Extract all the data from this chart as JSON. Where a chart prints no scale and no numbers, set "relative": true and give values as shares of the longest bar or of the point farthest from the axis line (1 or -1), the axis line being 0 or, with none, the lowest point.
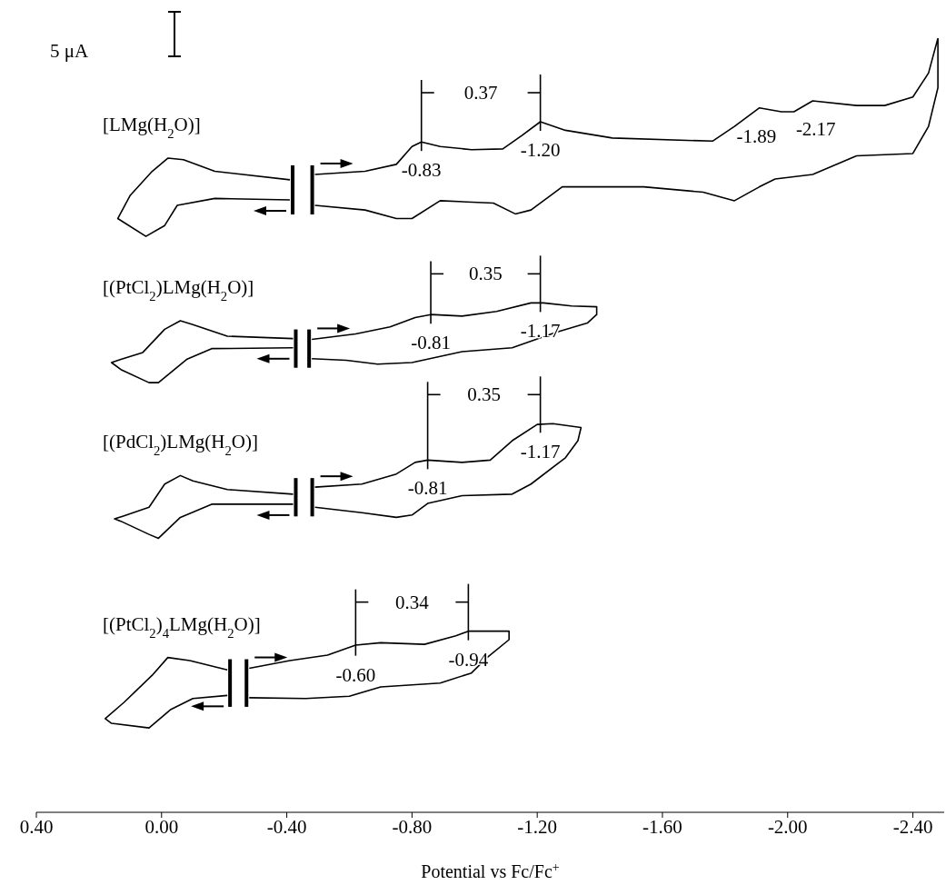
{
  "chart_data": {
    "type": "line",
    "xlabel": "Potential vs Fc/Fc$^{+}$",
    "relative": true,
    "xlim": [
      0.4,
      -2.5
    ],
    "xticks": [
      {
        "value": 0.4,
        "label": "0.40"
      },
      {
        "value": 0,
        "label": "0.00"
      },
      {
        "value": -0.4,
        "label": "-0.40"
      },
      {
        "value": -0.8,
        "label": "-0.80"
      },
      {
        "value": -1.2,
        "label": "-1.20"
      },
      {
        "value": -1.6,
        "label": "-1.60"
      },
      {
        "value": -2.0,
        "label": "-2.00"
      },
      {
        "value": -2.4,
        "label": "-2.40"
      }
    ],
    "series": [
      {
        "name": "[LMg(H$_{2}$O)]",
        "color": "#000000",
        "x": [
          -0.49,
          -0.65,
          -0.75,
          -0.8,
          -0.83,
          -0.89,
          -0.99,
          -1.09,
          -1.15,
          -1.21,
          -1.29,
          -1.44,
          -1.76,
          -1.83,
          -1.91,
          -1.98,
          -2.02,
          -2.08,
          -2.22,
          -2.31,
          -2.4,
          -2.45,
          -2.48,
          -2.48,
          -2.45,
          -2.4,
          -2.22,
          -2.08,
          -1.96,
          -1.91,
          -1.83,
          -1.73,
          -1.54,
          -1.28,
          -1.18,
          -1.13,
          -1.06,
          -0.89,
          -0.8,
          -0.75,
          -0.65,
          -0.49,
          null,
          -0.41,
          -0.17,
          -0.05,
          -0.01,
          0.05,
          0.14,
          0.1,
          0.03,
          -0.02,
          -0.07,
          -0.17,
          -0.41
        ],
        "values": [
          0.824,
          0.828,
          0.837,
          0.86,
          0.866,
          0.86,
          0.856,
          0.857,
          0.874,
          0.892,
          0.881,
          0.871,
          0.867,
          0.886,
          0.91,
          0.905,
          0.905,
          0.919,
          0.913,
          0.913,
          0.924,
          0.955,
          1.0,
          0.936,
          0.886,
          0.851,
          0.848,
          0.824,
          0.818,
          0.808,
          0.79,
          0.801,
          0.808,
          0.808,
          0.778,
          0.773,
          0.787,
          0.79,
          0.767,
          0.767,
          0.778,
          0.784,
          null,
          0.791,
          0.793,
          0.784,
          0.758,
          0.744,
          0.767,
          0.797,
          0.828,
          0.845,
          0.843,
          0.828,
          0.817
        ]
      },
      {
        "name": "[(PtCl$_{2}$)LMg(H$_{2}$O)]",
        "color": "#000000",
        "x": [
          -0.48,
          -0.62,
          -0.73,
          -0.81,
          -0.86,
          -0.96,
          -1.07,
          -1.18,
          -1.22,
          -1.31,
          -1.39,
          -1.39,
          -1.36,
          -1.26,
          -1.12,
          -0.96,
          -0.8,
          -0.69,
          -0.59,
          -0.48,
          null,
          -0.42,
          -0.16,
          -0.08,
          0.01,
          0.04,
          0.13,
          0.16,
          0.13,
          0.06,
          -0.01,
          -0.06,
          -0.1,
          -0.21,
          -0.42
        ],
        "values": [
          0.611,
          0.618,
          0.627,
          0.639,
          0.643,
          0.641,
          0.647,
          0.658,
          0.658,
          0.654,
          0.653,
          0.643,
          0.632,
          0.62,
          0.6,
          0.595,
          0.581,
          0.579,
          0.584,
          0.586,
          null,
          0.6,
          0.599,
          0.585,
          0.555,
          0.555,
          0.572,
          0.581,
          0.585,
          0.594,
          0.624,
          0.635,
          0.63,
          0.615,
          0.612
        ]
      },
      {
        "name": "[(PdCl$_{2}$)LMg(H$_{2}$O)]",
        "color": "#000000",
        "x": [
          -0.49,
          -0.64,
          -0.75,
          -0.81,
          -0.85,
          -0.96,
          -1.05,
          -1.12,
          -1.2,
          -1.25,
          -1.34,
          -1.33,
          -1.29,
          -1.18,
          -1.12,
          -0.96,
          -0.85,
          -0.8,
          -0.75,
          -0.64,
          -0.49,
          null,
          -0.42,
          -0.16,
          -0.06,
          0.01,
          0.04,
          0.13,
          0.15,
          0.12,
          0.04,
          -0.01,
          -0.06,
          -0.1,
          -0.21,
          -0.42
        ],
        "values": [
          0.42,
          0.424,
          0.437,
          0.452,
          0.455,
          0.452,
          0.455,
          0.48,
          0.501,
          0.502,
          0.497,
          0.48,
          0.458,
          0.424,
          0.411,
          0.409,
          0.399,
          0.384,
          0.381,
          0.387,
          0.394,
          null,
          0.398,
          0.398,
          0.381,
          0.354,
          0.359,
          0.376,
          0.379,
          0.383,
          0.394,
          0.424,
          0.435,
          0.428,
          0.417,
          0.411
        ]
      },
      {
        "name": "[(PtCl$_{2}$)$_{4}$LMg(H$_{2}$O)]",
        "color": "#000000",
        "x": [
          -0.28,
          -0.41,
          -0.53,
          -0.62,
          -0.7,
          -0.84,
          -0.94,
          -0.98,
          -1.11,
          -1.11,
          -1.04,
          -0.99,
          -0.89,
          -0.7,
          -0.6,
          -0.46,
          -0.28,
          null,
          -0.21,
          -0.1,
          -0.03,
          0.04,
          0.16,
          0.18,
          0.12,
          0.03,
          -0.02,
          -0.09,
          -0.21
        ],
        "values": [
          0.186,
          0.196,
          0.203,
          0.216,
          0.219,
          0.217,
          0.228,
          0.234,
          0.234,
          0.223,
          0.2,
          0.18,
          0.167,
          0.162,
          0.15,
          0.147,
          0.148,
          null,
          0.151,
          0.147,
          0.133,
          0.109,
          0.115,
          0.121,
          0.142,
          0.177,
          0.2,
          0.196,
          0.184
        ]
      }
    ],
    "annotations": [
      "5 μA",
      "0.37",
      "0.35",
      "0.35",
      "0.34",
      {
        "text": "-0.83",
        "x": -0.83,
        "y": 0.866
      },
      {
        "text": "-1.20",
        "x": -1.21,
        "y": 0.892
      },
      {
        "text": "-1.89",
        "x": -1.9,
        "y": 0.91
      },
      {
        "text": "-2.17",
        "x": -2.09,
        "y": 0.919
      },
      {
        "text": "-0.81",
        "x": -0.86,
        "y": 0.643
      },
      {
        "text": "-1.17",
        "x": -1.21,
        "y": 0.658
      },
      {
        "text": "-0.81",
        "x": -0.85,
        "y": 0.455
      },
      {
        "text": "-1.17",
        "x": -1.21,
        "y": 0.502
      },
      {
        "text": "-0.60",
        "x": -0.62,
        "y": 0.214
      },
      {
        "text": "-0.94",
        "x": -0.98,
        "y": 0.234
      }
    ]
  }
}
